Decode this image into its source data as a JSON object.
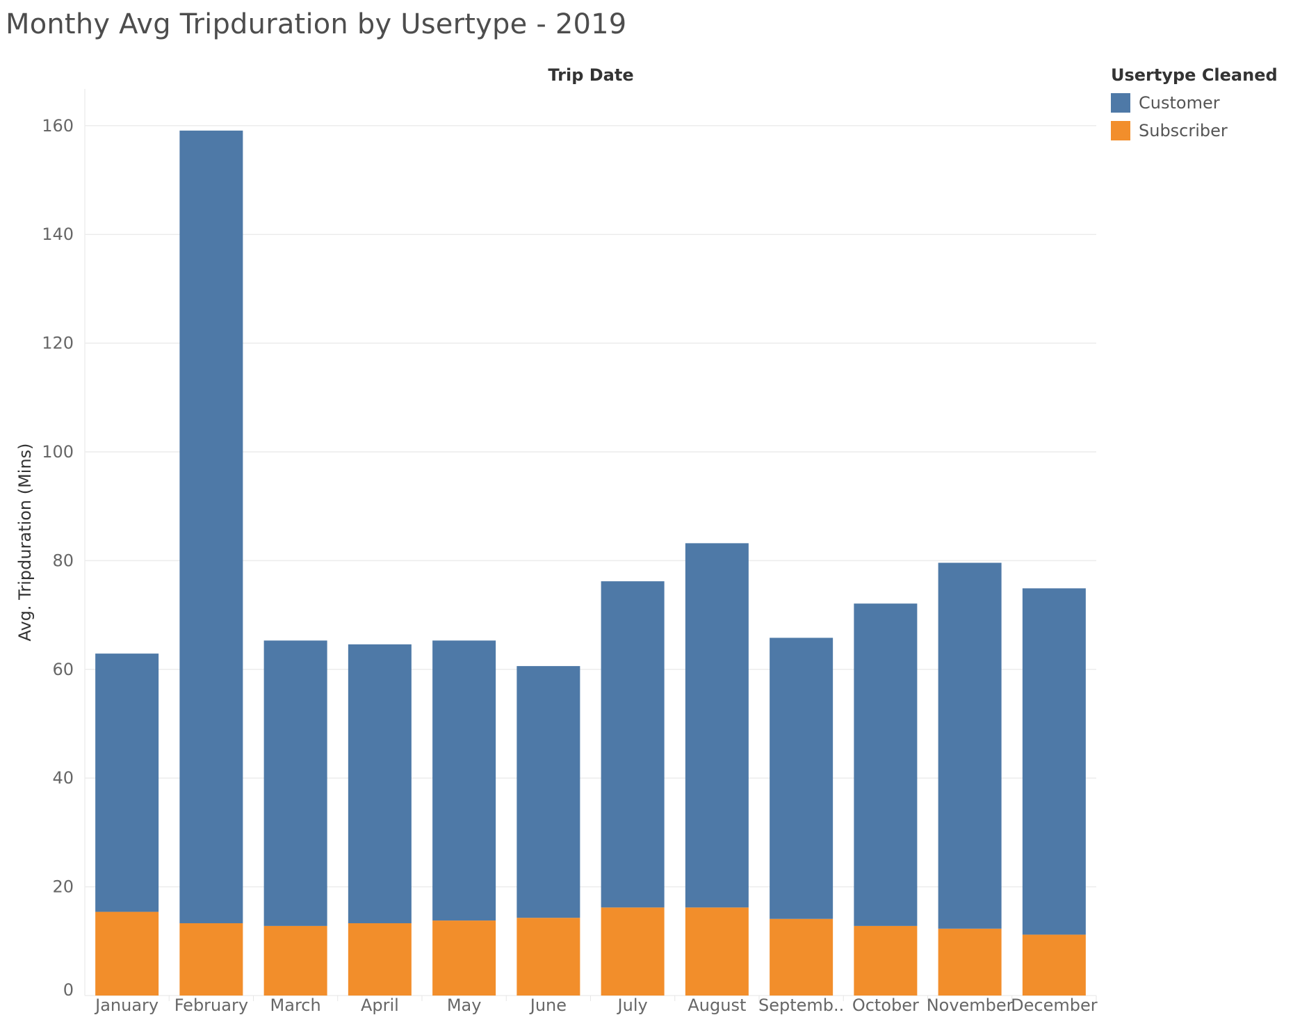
{
  "title": "Monthy Avg Tripduration by Usertype - 2019",
  "chart_data": {
    "type": "bar",
    "stacked": true,
    "title": "Monthy Avg Tripduration by Usertype - 2019",
    "column_header": "Trip Date",
    "ylabel": "Avg. Tripduration (Mins)",
    "ylim": [
      0,
      166
    ],
    "yticks": [
      0,
      20,
      40,
      60,
      80,
      100,
      120,
      140,
      160
    ],
    "gridlines": true,
    "legend_position": "top-right",
    "categories": [
      "January",
      "February",
      "March",
      "April",
      "May",
      "June",
      "July",
      "August",
      "Septemb..",
      "October",
      "November",
      "December"
    ],
    "series": [
      {
        "name": "Subscriber",
        "color": "#f28e2b",
        "values": [
          15.4,
          13.3,
          12.8,
          13.3,
          13.8,
          14.3,
          16.2,
          16.2,
          14.1,
          12.8,
          12.3,
          11.2
        ]
      },
      {
        "name": "Customer",
        "color": "#4e79a7",
        "values": [
          47.5,
          145.8,
          52.5,
          51.3,
          51.5,
          46.3,
          60.0,
          67.0,
          51.7,
          59.3,
          67.3,
          63.7
        ]
      }
    ]
  },
  "legend": {
    "title": "Usertype Cleaned",
    "items": [
      {
        "label": "Customer",
        "color": "#4e79a7"
      },
      {
        "label": "Subscriber",
        "color": "#f28e2b"
      }
    ]
  }
}
